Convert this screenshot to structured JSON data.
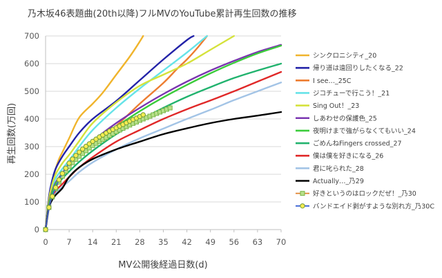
{
  "chart_data": {
    "type": "line",
    "title": "乃木坂46表題曲(20th以降)フルMVのYouTube累計再生回数の推移",
    "xlabel": "MV公開後経過日数(d)",
    "ylabel": "再生回数(万回)",
    "xlim": [
      0,
      70
    ],
    "ylim": [
      0,
      700
    ],
    "xticks": [
      0,
      7,
      14,
      21,
      28,
      35,
      42,
      49,
      56,
      63,
      70
    ],
    "yticks": [
      0,
      100,
      200,
      300,
      400,
      500,
      600,
      700
    ],
    "grid": "horizontal",
    "legend": "right",
    "series": [
      {
        "name": "シンクロニシティ_20",
        "color": "#f0b42c",
        "x": [
          0,
          1,
          2,
          3,
          4,
          5,
          7,
          10,
          14,
          17,
          21,
          25,
          28,
          29
        ],
        "y": [
          0,
          110,
          175,
          220,
          255,
          280,
          330,
          405,
          455,
          495,
          560,
          625,
          680,
          700
        ]
      },
      {
        "name": "帰り道は遠回りしたくなる_22",
        "color": "#2323a8",
        "x": [
          0,
          1,
          2,
          3,
          5,
          7,
          10,
          14,
          21,
          28,
          35,
          42,
          44
        ],
        "y": [
          0,
          120,
          180,
          220,
          265,
          300,
          350,
          400,
          465,
          540,
          615,
          685,
          700
        ]
      },
      {
        "name": "I see…_25C",
        "color": "#ed7d31",
        "x": [
          0,
          1,
          2,
          3,
          5,
          7,
          10,
          14,
          21,
          28,
          35,
          39,
          42,
          45,
          48
        ],
        "y": [
          0,
          90,
          130,
          160,
          195,
          225,
          265,
          305,
          375,
          455,
          530,
          580,
          615,
          655,
          700
        ]
      },
      {
        "name": "ジコチューで行こう！_21",
        "color": "#66e3e8",
        "x": [
          0,
          1,
          2,
          3,
          5,
          7,
          10,
          14,
          21,
          28,
          35,
          42,
          48
        ],
        "y": [
          0,
          100,
          150,
          185,
          220,
          250,
          300,
          360,
          440,
          510,
          575,
          640,
          700
        ]
      },
      {
        "name": "Sing Out！_23",
        "color": "#d5e23c",
        "x": [
          0,
          1,
          2,
          3,
          5,
          7,
          10,
          14,
          21,
          28,
          35,
          42,
          49,
          56
        ],
        "y": [
          0,
          110,
          165,
          200,
          240,
          270,
          320,
          385,
          460,
          520,
          560,
          600,
          650,
          700
        ]
      },
      {
        "name": "しあわせの保護色_25",
        "color": "#7a35b0",
        "x": [
          0,
          1,
          2,
          3,
          5,
          7,
          10,
          14,
          21,
          28,
          35,
          42,
          49,
          56,
          63,
          70
        ],
        "y": [
          0,
          95,
          140,
          170,
          205,
          235,
          275,
          320,
          385,
          440,
          490,
          535,
          575,
          610,
          642,
          668
        ]
      },
      {
        "name": "夜明けまで強がらなくてもいい_24",
        "color": "#3bcc3b",
        "x": [
          0,
          1,
          2,
          3,
          5,
          7,
          10,
          14,
          21,
          28,
          35,
          42,
          49,
          56,
          63,
          70
        ],
        "y": [
          0,
          90,
          135,
          165,
          200,
          230,
          270,
          312,
          372,
          428,
          478,
          523,
          565,
          603,
          637,
          665
        ]
      },
      {
        "name": "ごめんねFingers crossed_27",
        "color": "#21b36e",
        "x": [
          0,
          1,
          2,
          3,
          5,
          7,
          10,
          14,
          21,
          28,
          35,
          42,
          49,
          56,
          63,
          70
        ],
        "y": [
          0,
          85,
          125,
          155,
          185,
          210,
          245,
          285,
          345,
          395,
          440,
          480,
          515,
          548,
          575,
          600
        ]
      },
      {
        "name": "僕は僕を好きになる_26",
        "color": "#e02828",
        "x": [
          0,
          1,
          2,
          3,
          5,
          7,
          10,
          14,
          21,
          28,
          35,
          42,
          49,
          56,
          63,
          70
        ],
        "y": [
          0,
          80,
          115,
          140,
          165,
          190,
          225,
          262,
          318,
          360,
          400,
          435,
          467,
          500,
          535,
          570
        ]
      },
      {
        "name": "君に叱られた_28",
        "color": "#a3c4e6",
        "x": [
          0,
          1,
          2,
          3,
          5,
          7,
          10,
          14,
          21,
          28,
          35,
          42,
          49,
          56,
          63,
          70
        ],
        "y": [
          0,
          75,
          108,
          130,
          155,
          175,
          208,
          243,
          290,
          330,
          365,
          400,
          433,
          468,
          500,
          532
        ]
      },
      {
        "name": "Actually…_乃29",
        "color": "#000000",
        "x": [
          0,
          1,
          2,
          3,
          5,
          7,
          10,
          14,
          21,
          28,
          35,
          42,
          49,
          56,
          63,
          70
        ],
        "y": [
          0,
          80,
          108,
          125,
          150,
          190,
          225,
          255,
          290,
          318,
          345,
          366,
          385,
          400,
          412,
          425
        ]
      },
      {
        "name": "好きというのはロックだぜ！_乃30",
        "color": "#e0812e",
        "marker": "square",
        "marker_fill": "#b8e08a",
        "marker_stroke": "#79b548",
        "x": [
          0,
          1,
          2,
          3,
          4,
          5,
          6,
          7,
          8,
          9,
          10,
          11,
          12,
          13,
          14,
          15,
          16,
          17,
          18,
          19,
          20,
          21,
          22,
          23,
          24,
          25,
          26,
          27,
          28,
          29,
          30,
          31,
          32,
          33,
          34,
          35,
          36,
          37
        ],
        "y": [
          0,
          80,
          118,
          148,
          172,
          193,
          212,
          228,
          242,
          254,
          265,
          275,
          285,
          295,
          304,
          312,
          319,
          326,
          333,
          340,
          347,
          354,
          360,
          366,
          372,
          378,
          384,
          389,
          395,
          400,
          405,
          410,
          415,
          420,
          425,
          430,
          435,
          440
        ]
      },
      {
        "name": "バンドエイド剥がすような別れ方_乃30C",
        "color": "#3a62d6",
        "marker": "circle",
        "marker_fill": "#f5ec52",
        "marker_stroke": "#6f9a3c",
        "x": [
          0,
          1,
          2,
          3,
          4,
          5,
          6,
          7,
          8,
          9,
          10,
          11,
          12,
          13,
          14,
          15,
          16,
          17,
          18,
          19,
          20,
          21,
          22,
          23,
          24,
          25,
          26,
          27,
          28,
          29
        ],
        "y": [
          0,
          80,
          120,
          152,
          180,
          203,
          222,
          240,
          255,
          268,
          280,
          291,
          301,
          310,
          319,
          327,
          335,
          342,
          349,
          356,
          362,
          368,
          374,
          380,
          386,
          392,
          398,
          403,
          409,
          415
        ]
      }
    ]
  }
}
